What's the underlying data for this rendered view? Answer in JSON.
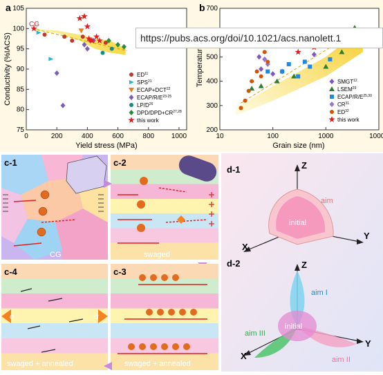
{
  "url_overlay": "https://pubs.acs.org/doi/10.1021/acs.nanolett.1",
  "panel_a": {
    "label": "a",
    "ylabel": "Conductivity (%IACS)",
    "xlabel": "Yield stress (MPa)",
    "cg_label": "CG",
    "xticks": [
      "0",
      "200",
      "400",
      "600",
      "800",
      "1000"
    ],
    "yticks": [
      "75",
      "80",
      "85",
      "90",
      "95",
      "100",
      "105"
    ],
    "legend": [
      "ED",
      "SPS",
      "ECAP+DCT",
      "ECAP/R/E",
      "LP/D",
      "DPD/DPD+CR",
      "this work"
    ],
    "legend_refs": [
      "11",
      "21",
      "22",
      "23-25",
      "26",
      "27,28",
      ""
    ]
  },
  "panel_b": {
    "label": "b",
    "ylabel": "Temperature (",
    "xlabel": "Grain size (nm)",
    "xticks": [
      "10",
      "100",
      "1000",
      "10000"
    ],
    "yticks": [
      "200",
      "300",
      "400",
      "500",
      "600",
      "700"
    ],
    "legend": [
      "SMGT",
      "LSEM",
      "ECAP/R/E",
      "CR",
      "ED",
      "this work"
    ],
    "legend_refs": [
      "12",
      "29",
      "25,30",
      "31",
      "32",
      ""
    ]
  },
  "panel_c": {
    "c1": "c-1",
    "c2": "c-2",
    "c3": "c-3",
    "c4": "c-4",
    "cg": "CG",
    "swaged": "swaged",
    "swaged_annealed_left": "swaged + annealed",
    "swaged_annealed_right": "swaged + annealed",
    "sigma": "σ"
  },
  "panel_d": {
    "d1": "d-1",
    "d2": "d-2",
    "z": "Z",
    "y": "Y",
    "x": "X",
    "aim": "aim",
    "initial": "initial",
    "aim1": "aim I",
    "aim2": "aim II",
    "aim3": "aim III"
  },
  "chart_data": [
    {
      "type": "scatter",
      "title": "",
      "xlabel": "Yield stress (MPa)",
      "ylabel": "Conductivity (%IACS)",
      "xlim": [
        0,
        1050
      ],
      "ylim": [
        75,
        105
      ],
      "series": [
        {
          "name": "ED",
          "points": [
            [
              120,
              98.5
            ],
            [
              250,
              98
            ],
            [
              300,
              97
            ],
            [
              370,
              98
            ],
            [
              420,
              97
            ],
            [
              520,
              96.5
            ]
          ]
        },
        {
          "name": "SPS",
          "points": [
            [
              80,
              99
            ],
            [
              160,
              92.5
            ]
          ]
        },
        {
          "name": "ECAP+DCT",
          "points": [
            [
              360,
              99.5
            ]
          ]
        },
        {
          "name": "ECAP/R/E",
          "points": [
            [
              200,
              89
            ],
            [
              240,
              81
            ],
            [
              380,
              96
            ],
            [
              400,
              95
            ],
            [
              440,
              97
            ]
          ]
        },
        {
          "name": "LP/D",
          "points": [
            [
              500,
              94
            ],
            [
              560,
              95
            ]
          ]
        },
        {
          "name": "DPD/DPD+CR",
          "points": [
            [
              600,
              96
            ],
            [
              640,
              95.5
            ],
            [
              540,
              97
            ]
          ]
        },
        {
          "name": "this work",
          "points": [
            [
              50,
              100
            ],
            [
              350,
              102.5
            ],
            [
              380,
              103
            ],
            [
              400,
              100.5
            ],
            [
              410,
              97.5
            ],
            [
              430,
              97
            ],
            [
              460,
              98
            ],
            [
              480,
              97
            ]
          ]
        }
      ]
    },
    {
      "type": "scatter",
      "title": "",
      "xlabel": "Grain size (nm)",
      "ylabel": "Temperature",
      "xscale": "log",
      "xlim": [
        10,
        10000
      ],
      "ylim": [
        200,
        700
      ],
      "series": [
        {
          "name": "SMGT",
          "points": [
            [
              55,
              500
            ],
            [
              60,
              450
            ],
            [
              70,
              490
            ],
            [
              100,
              430
            ],
            [
              150,
              440
            ],
            [
              600,
              510
            ]
          ]
        },
        {
          "name": "LSEM",
          "points": [
            [
              40,
              370
            ],
            [
              60,
              380
            ],
            [
              120,
              400
            ],
            [
              250,
              420
            ],
            [
              1000,
              460
            ],
            [
              2000,
              520
            ],
            [
              3500,
              620
            ]
          ]
        },
        {
          "name": "ECAP/R/E",
          "points": [
            [
              80,
              440
            ],
            [
              150,
              440
            ],
            [
              200,
              470
            ],
            [
              300,
              420
            ],
            [
              400,
              480
            ],
            [
              500,
              460
            ],
            [
              1200,
              490
            ]
          ]
        },
        {
          "name": "CR",
          "points": [
            [
              55,
              560
            ],
            [
              60,
              600
            ],
            [
              70,
              490
            ],
            [
              80,
              470
            ]
          ]
        },
        {
          "name": "ED",
          "points": [
            [
              25,
              290
            ],
            [
              30,
              320
            ],
            [
              35,
              360
            ],
            [
              40,
              400
            ],
            [
              50,
              440
            ],
            [
              60,
              420
            ],
            [
              70,
              520
            ],
            [
              80,
              480
            ]
          ]
        },
        {
          "name": "this work",
          "points": [
            [
              300,
              520
            ],
            [
              600,
              540
            ]
          ]
        }
      ]
    }
  ],
  "colors": {
    "ed": "#c0392b",
    "sps": "#1fb7d8",
    "ecapdct": "#f07b1a",
    "ecaprre": "#7a5fb5",
    "lpd": "#178b82",
    "dpd": "#2e8b3a",
    "thiswork": "#e41a1c",
    "smgt": "#7e57c2",
    "lsem": "#2e7d32",
    "ecapb": "#1e88e5",
    "crb": "#9575cd",
    "edb": "#d35400"
  }
}
